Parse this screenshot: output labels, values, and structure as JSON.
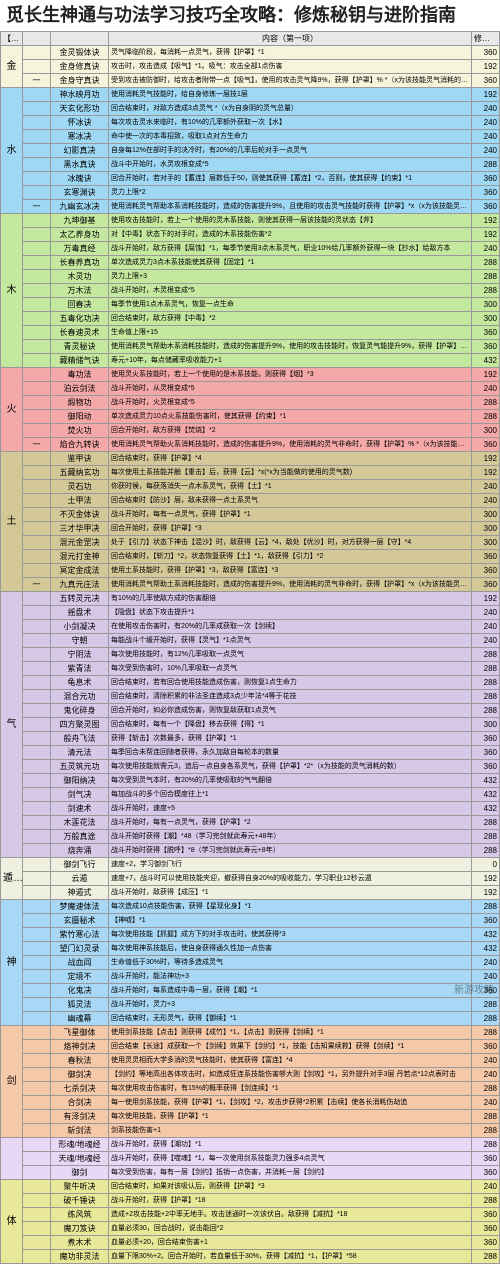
{
  "title": "觅长生神通与功法学习技巧全攻略：修炼秘钥与进阶指南",
  "watermark": "新游攻略",
  "header_row": [
    "【功法】功能筛",
    "",
    "",
    "内容（第一项）",
    "修炼速度（第一项）"
  ],
  "categories": [
    {
      "name": "金",
      "bg": "#f5f5dc",
      "sub_bg": "#f5f5dc",
      "rows": [
        [
          "",
          "金灵锻体诀",
          "灵气降临阶段，每消耗一点灵气，获得【护罩】*1",
          "360"
        ],
        [
          "",
          "金身修真诀",
          "攻击时，攻击造成【吸气】*1。吸气：攻击全部1点伤害",
          "192"
        ]
      ],
      "subrows": [
        [
          "一",
          "金身守真诀",
          "受到攻击被防御时，给攻击者附带一点【吸气】，使用的攻击灵气降9%，获得【护罩】% *（x为该技能灵气消耗的数量）",
          "360"
        ]
      ]
    },
    {
      "name": "水",
      "bg": "#9fd8f5",
      "sub_bg": "#9fd8f5",
      "rows": [
        [
          "",
          "神水映月功",
          "使用消耗灵气技能时，给自身修炼一层技1层",
          "192"
        ],
        [
          "",
          "天玄化形功",
          "回合结束时，对敌方造成3点灵气 *（x为自身阴的灵气总量）",
          "240"
        ],
        [
          "",
          "怀冰诀",
          "每次攻击灵水来临时，有10%的几率额外获取一次【水】",
          "240"
        ],
        [
          "",
          "寒冰决",
          "命中使一次的本毒招致，吸取1点对方生命力",
          "240"
        ],
        [
          "",
          "幻影真决",
          "自身每12%在部时手的决冷时，有20%的几率后轮对手一点灵气",
          "240"
        ],
        [
          "",
          "黑水真诀",
          "战斗中开始时，水灵攻根变成*5",
          "288"
        ],
        [
          "",
          "冰魄诀",
          "回合开始时，若对手的【蓄连】层数低于50，则使其获得【蓄连】*2，否则，使其获得【约束】*1",
          "360"
        ],
        [
          "",
          "玄寒渊诀",
          "灵力上限*2",
          "360"
        ]
      ],
      "subrows": [
        [
          "一",
          "九幽玄冰决",
          "使用消耗灵气帮助本系消耗技能时，造成的伤害提升9%，且使用的攻击灵气技能时获得【护罩】*x（x为该技能灵气消耗的数量）",
          "360"
        ]
      ]
    },
    {
      "name": "木",
      "bg": "#c5e89f",
      "sub_bg": "#c5e89f",
      "rows": [
        [
          "",
          "九坤御基",
          "使用攻击技能时，若上一个使用的灵木系技能，则使其获得一层该技能的灵状态【斧】",
          "192"
        ],
        [
          "",
          "太乙养身功",
          "对【中毒】状态下的对手时，造成的木系技能伤害*2",
          "192"
        ],
        [
          "",
          "万毒真经",
          "战斗开始时，敌方获得【腐蚀】*1，每季节使用3点木系灵气，职业10%给几率额外获得一块【抄水】给敌方本",
          "240"
        ],
        [
          "",
          "长春养真功",
          "单次造成灵力3点木系技能使其获得【固定】*1",
          "288"
        ],
        [
          "",
          "木灵功",
          "灵力上限+3",
          "288"
        ],
        [
          "",
          "万木法",
          "战斗开始时，木灵根变成*5",
          "288"
        ],
        [
          "",
          "回春决",
          "每季节使用1点木系灵气，恢复一点生命",
          "300"
        ],
        [
          "",
          "五毒化功决",
          "回合结束时，敌方获得【中毒】*2",
          "300"
        ],
        [
          "",
          "长春速灵术",
          "生命值上限+15",
          "360"
        ],
        [
          "",
          "青灵秘诀",
          "使用消耗灵气帮助木系消耗技能时，造成的伤害提升9%，使用的攻击技能时，恢复灵气能提升9%，获得【护罩】*x（x为该技能灵气消耗的数量）",
          "360"
        ],
        [
          "",
          "藏精储气诀",
          "寿元+10年，每点储藏率吸收能力+1",
          "432"
        ]
      ],
      "subrows": []
    },
    {
      "name": "火",
      "bg": "#f5a8a8",
      "sub_bg": "#f5a8a8",
      "rows": [
        [
          "",
          "毒功法",
          "使用灵火系技能时，若上一个使用的是木系技能，则获得【烟】*3",
          "192"
        ],
        [
          "",
          "泊云剑法",
          "战斗开始时，从灵根变成*5",
          "240"
        ],
        [
          "",
          "煅物功",
          "战斗开始时，火灵根变成*5",
          "288"
        ],
        [
          "",
          "御阳动",
          "单次造成灵力10点火系技能伤害时，使其获得【约束】*1",
          "288"
        ],
        [
          "",
          "焚火功",
          "回合开始时，敌方获得【焚烧】*2",
          "300"
        ]
      ],
      "subrows": [
        [
          "一",
          "焰合九转诀",
          "使用消耗灵气帮助火系消耗技能时，造成的伤害提升9%，使用消耗的灵气非命时，获得【护罩】% *（x为该技能灵气消耗的数量）",
          "360"
        ]
      ]
    },
    {
      "name": "土",
      "bg": "#d4c898",
      "sub_bg": "#d4c898",
      "rows": [
        [
          "",
          "鉴甲诀",
          "回合结束时，获得【护罩】*4",
          "192"
        ],
        [
          "",
          "五藏纳玄功",
          "每次使用土系技能并触【重击】后，获得【云】*x(*x为当能做的使用的灵气数)",
          "192"
        ],
        [
          "",
          "灵石功",
          "你获时候，每获落消失一点木系灵气，获得【土】*1",
          "240"
        ],
        [
          "",
          "土甲法",
          "回合结束时【防沙】层，敌未获得一点土系灵气",
          "240"
        ],
        [
          "",
          "不灭金体诀",
          "战斗开始时，每有一点灵气，获得【护罩】*1",
          "300"
        ],
        [
          "",
          "三才华甲决",
          "回合开始时，获得【护罩】*3",
          "300"
        ],
        [
          "",
          "混元金罡决",
          "处于【引力】状态下神击【混沙】时，敌获得【云】*4，敌处【优沙】时，对方获得一层【守】*4",
          "300"
        ],
        [
          "",
          "混元打金神",
          "回合结束时，【斩刀】*2，状态恢复获得【土】*1，敌获得【引力】*2",
          "360"
        ],
        [
          "",
          "冥定金成法",
          "使用土系技能时，获得【护罩】*3，敌获得【富连】*3",
          "360"
        ]
      ],
      "subrows": [
        [
          "一",
          "九真元庄法",
          "使用消耗灵气帮助土系消耗技能时，造成的伤害提升9%，使用消耗的灵气非命时，获得【护罩】*x（x为该技能灵气消耗的数量）",
          "360"
        ]
      ]
    },
    {
      "name": "气",
      "bg": "#d8c8e8",
      "sub_bg": "#d8c8e8",
      "rows": [
        [
          "",
          "五转灵元决",
          "有10%的几率使敌方成的伤害翻倍",
          "192"
        ],
        [
          "",
          "摇盘术",
          "【隐盘】状态下攻击提升*1",
          "240"
        ],
        [
          "",
          "小剑凝决",
          "在使用攻击伤害时，有20%的几率成获取一次【剑续】",
          "240"
        ],
        [
          "",
          "守朝",
          "每能战斗个缓开始时，获得【灵气】*1点灵气",
          "240"
        ],
        [
          "",
          "宁阴法",
          "每次使用技能时，有12%几率吸取一点灵气",
          "288"
        ],
        [
          "",
          "紫青法",
          "每次受到伤害时，10%几率吸取一点灵气",
          "288"
        ],
        [
          "",
          "龟息术",
          "回合结束时，若有回合使用技能造成伤害，则恢复1点生命力",
          "288"
        ],
        [
          "",
          "混合元功",
          "回合结束时，清除积累的非法圣连造成3点少年法*4等于花技",
          "288"
        ],
        [
          "",
          "鬼化碎身",
          "回合开始时，如必你造成伤害，则恢复敌获取1点灵气",
          "288"
        ],
        [
          "",
          "四方聚灵图",
          "回合结束时，每有一个【降盘】移去获得【得】*1",
          "300"
        ],
        [
          "",
          "般舟飞法",
          "获得【斩击】次数最多，获得【护罩】*1",
          "360"
        ],
        [
          "",
          "清元法",
          "每季回合未帮连回随者获得，永久加敌自每轮本的数量",
          "360"
        ],
        [
          "",
          "五灵筑元功",
          "每次使用技能就需元3，追后一点自身各系灵气，获得【护罩】*2*（x为技能的灵气消耗的数）",
          "360"
        ],
        [
          "",
          "御阳纳决",
          "每次受到灵气本时，有20%的几率使吸取的气气翻倍",
          "432"
        ],
        [
          "",
          "剑气决",
          "每加战斗的多个回合模度往上*1",
          "432"
        ],
        [
          "",
          "剑速术",
          "战斗开始时，速度+5",
          "432"
        ],
        [
          "",
          "木莲花法",
          "战斗开始时，每有一点灵气，获得【护罩】*2",
          "288"
        ],
        [
          "",
          "万般真途",
          "战斗开始时获得【潮】*48（学习完剑就此寿元+48年）",
          "288"
        ],
        [
          "",
          "烧奔涌",
          "战斗开始时获得【脱呼】*8（学习完剑就此寿元+8年）",
          "288"
        ]
      ],
      "subrows": []
    },
    {
      "name": "遁术",
      "bg": "#f0f0e0",
      "sub_bg": "#f0f0e0",
      "rows": [
        [
          "",
          "御剑飞行",
          "速度+2，学习御剑飞行",
          "0"
        ],
        [
          "",
          "云遁",
          "速度+7，战斗时可以使用技能夹迎，撤获得自身20%的吸收能力，学习职业12秒云遁",
          "192"
        ],
        [
          "",
          "神遁式",
          "战斗开始时，敌获得【成压】*1",
          "192"
        ]
      ],
      "subrows": []
    },
    {
      "name": "神",
      "bg": "#a8d8f5",
      "sub_bg": "#a8d8f5",
      "rows": [
        [
          "",
          "梦魔速体法",
          "每次造成10点技能伤害，获得【星现化身】*1",
          "288"
        ],
        [
          "",
          "玄蜃秘术",
          "【神嘘】*1",
          "360"
        ],
        [
          "",
          "紫竹寒心法",
          "每次使用技能【抓握】成方下的对手攻击时，使其获得*3",
          "432"
        ],
        [
          "",
          "望门幻灵录",
          "每次使用神系技能后，使自身获得通久性加一点伤害",
          "432"
        ],
        [
          "",
          "战血阎",
          "生命值低于30%时，等待多造成灵气",
          "240"
        ],
        [
          "",
          "定境不",
          "战斗开始时，能法神功+3",
          "240"
        ],
        [
          "",
          "化鬼决",
          "战斗开始时，每系造成中毒一层，获得【潮】*1",
          "360"
        ],
        [
          "",
          "狐灵法",
          "战斗开始时，灵力+3",
          "288"
        ],
        [
          "",
          "幽魂幕",
          "回合结束时，无形灵气，获得【御续】*1",
          "288"
        ]
      ],
      "subrows": []
    },
    {
      "name": "剑",
      "bg": "#f5c8a8",
      "sub_bg": "#f5c8a8",
      "rows": [
        [
          "",
          "飞星御体",
          "使用剑系技能【点击】则获得【成竹】*1，【点击】则获得【剑续】*1",
          "288"
        ],
        [
          "",
          "烙神剑决",
          "回合结束【长途】成获取一个【剑续】效果下【剑约】*1，技能【击知果续救】获得【剑续】*1",
          "360"
        ],
        [
          "",
          "春秋法",
          "使用灵灵相而大学多消的灵气技能时，使其获得【富连】*4",
          "240"
        ],
        [
          "",
          "御剑决",
          "【剑约】等地高出各体攻击时，如造成狂连系技能伤害够大则【剑攻】*1，另外提升对手3层 丹若点*12点表时击",
          "240"
        ],
        [
          "",
          "七杀剑决",
          "每次使用攻击伤害时，有15%的概率获得【剑连续】*1",
          "288"
        ],
        [
          "",
          "合剑决",
          "每一使用剑系技能，获得【护罩】*1，【剑攻】*2，攻击步获得*2积累【击续】使各长消耗伤劫追",
          "240"
        ],
        [
          "",
          "有泽剑决",
          "每次使用技能，获得【护罩】*1",
          "288"
        ],
        [
          "",
          "斩剑法",
          "剑系技能伤害+1",
          "288"
        ]
      ],
      "subrows": []
    },
    {
      "name": "",
      "bg": "#e8d8f5",
      "sub_bg": "#e8d8f5",
      "rows": [
        [
          "",
          "形魂/地魂经",
          "战斗开始时，获得【潮功】*1",
          "288"
        ],
        [
          "",
          "天魂/地魂经",
          "战斗开始时，获得【噬魂】*1，每一次使用剑系技能灵力强多4点灵气",
          "360"
        ],
        [
          "",
          "御剑",
          "每次受到伤害，每有一层【剑约】抵销一点伤害，并消耗一层【剑约】",
          "360"
        ]
      ],
      "subrows": []
    },
    {
      "name": "体",
      "bg": "#e8e898",
      "sub_bg": "#e8e898",
      "rows": [
        [
          "",
          "聚牛听决",
          "回合结束时，如果对该吸认后，则获得【护罩】*3",
          "240"
        ],
        [
          "",
          "破千锤诀",
          "战斗开始时，获得【护罩】*18",
          "288"
        ],
        [
          "",
          "练风筑",
          "造成+2攻击技能+2中率无地手。攻击迷通时一次该伏自。敌获得【减抗】*18",
          "360"
        ],
        [
          "",
          "魔刀笈诀",
          "血量必须30，回合战时，说击能回*2",
          "360"
        ],
        [
          "",
          "煮木术",
          "血量必须+20，回合结束伤害+1",
          "360"
        ],
        [
          "",
          "魔功非灵法",
          "血量下限30%+2。回合开始时，若血量低于30%，获得【减抗】*1，【护罩】*58",
          "288"
        ]
      ],
      "subrows": []
    }
  ]
}
